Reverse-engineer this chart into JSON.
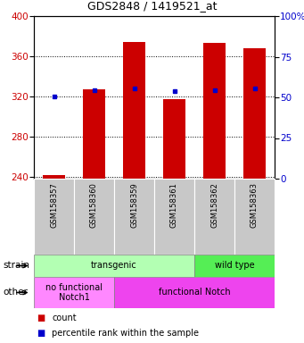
{
  "title": "GDS2848 / 1419521_at",
  "samples": [
    "GSM158357",
    "GSM158360",
    "GSM158359",
    "GSM158361",
    "GSM158362",
    "GSM158363"
  ],
  "bar_bottoms": [
    238,
    238,
    238,
    238,
    238,
    238
  ],
  "bar_tops": [
    242,
    327,
    374,
    317,
    373,
    368
  ],
  "percentile_values": [
    320,
    326,
    328,
    325,
    326,
    328
  ],
  "ylim": [
    238,
    400
  ],
  "yticks_left": [
    240,
    280,
    320,
    360,
    400
  ],
  "yticks_right_pct": [
    0,
    25,
    50,
    75,
    100
  ],
  "bar_color": "#cc0000",
  "percentile_color": "#0000cc",
  "strain_groups": [
    {
      "text": "transgenic",
      "cols": [
        0,
        1,
        2,
        3
      ],
      "color": "#b3ffb3"
    },
    {
      "text": "wild type",
      "cols": [
        4,
        5
      ],
      "color": "#55ee55"
    }
  ],
  "other_groups": [
    {
      "text": "no functional\nNotch1",
      "cols": [
        0,
        1
      ],
      "color": "#ff88ff"
    },
    {
      "text": "functional Notch",
      "cols": [
        2,
        3,
        4,
        5
      ],
      "color": "#ee44ee"
    }
  ],
  "strain_row_label": "strain",
  "other_row_label": "other",
  "legend_count_label": "count",
  "legend_pct_label": "percentile rank within the sample",
  "left_axis_color": "#cc0000",
  "right_axis_color": "#0000cc",
  "tick_label_area_color": "#c8c8c8"
}
